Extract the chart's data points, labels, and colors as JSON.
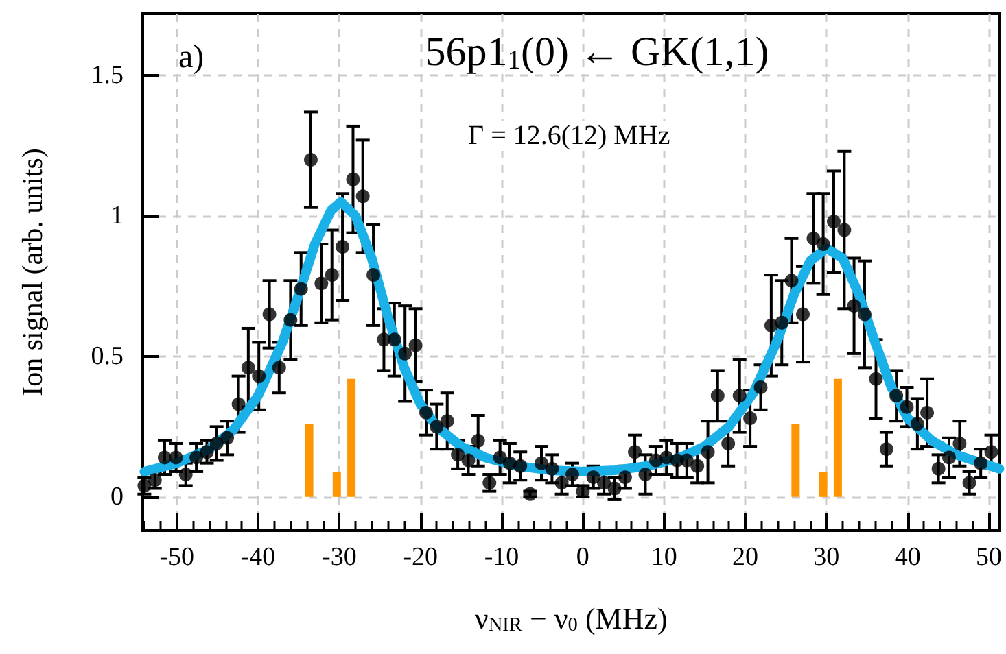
{
  "chart_data": {
    "type": "scatter",
    "title": "56p1$_{1}$(0) ← GK(1,1)",
    "xlabel": "ν$_{NIR}$ − ν$_{0}$ (MHz)",
    "ylabel": "Ion signal (arb. units)",
    "annotations": [
      "a)",
      "Γ = 12.6(12) MHz"
    ],
    "xlim": [
      -54.2,
      51.3
    ],
    "ylim": [
      -0.12,
      1.72
    ],
    "xticks": [
      -50,
      -40,
      -30,
      -20,
      -10,
      0,
      10,
      20,
      30,
      40,
      50
    ],
    "yticks": [
      0,
      0.5,
      1,
      1.5
    ],
    "grid": true,
    "series": [
      {
        "marker": "circle",
        "color": "#000000",
        "x": [
          -54.0,
          -52.7,
          -51.5,
          -50.1,
          -48.9,
          -47.6,
          -46.3,
          -45.1,
          -43.8,
          -42.4,
          -41.2,
          -39.9,
          -38.6,
          -37.4,
          -36.0,
          -34.7,
          -33.5,
          -32.2,
          -30.9,
          -29.6,
          -28.3,
          -27.1,
          -25.8,
          -24.5,
          -23.2,
          -21.9,
          -20.6,
          -19.3,
          -18.0,
          -16.7,
          -15.4,
          -14.1,
          -12.9,
          -11.5,
          -10.2,
          -9.0,
          -7.7,
          -6.5,
          -5.1,
          -3.8,
          -2.6,
          -1.3,
          0.0,
          1.3,
          2.6,
          3.9,
          5.2,
          6.4,
          7.7,
          9.0,
          10.3,
          11.6,
          12.8,
          14.1,
          15.4,
          16.6,
          17.9,
          19.3,
          20.6,
          21.9,
          23.2,
          24.5,
          25.7,
          27.1,
          28.4,
          29.6,
          30.9,
          32.2,
          33.4,
          34.7,
          36.1,
          37.4,
          38.6,
          39.9,
          41.2,
          42.4,
          43.8,
          45.1,
          46.4,
          47.6,
          49.0,
          50.3
        ],
        "values": [
          0.04,
          0.06,
          0.14,
          0.14,
          0.08,
          0.14,
          0.16,
          0.19,
          0.21,
          0.33,
          0.46,
          0.43,
          0.65,
          0.46,
          0.63,
          0.74,
          1.2,
          0.76,
          0.79,
          0.89,
          1.13,
          1.07,
          0.79,
          0.56,
          0.56,
          0.51,
          0.54,
          0.3,
          0.25,
          0.27,
          0.15,
          0.13,
          0.2,
          0.05,
          0.14,
          0.12,
          0.11,
          0.01,
          0.12,
          0.1,
          0.05,
          0.08,
          0.02,
          0.07,
          0.05,
          0.03,
          0.07,
          0.16,
          0.08,
          0.13,
          0.14,
          0.13,
          0.13,
          0.11,
          0.16,
          0.36,
          0.19,
          0.36,
          0.28,
          0.39,
          0.61,
          0.62,
          0.77,
          0.65,
          0.92,
          0.9,
          0.98,
          0.95,
          0.68,
          0.65,
          0.42,
          0.17,
          0.36,
          0.32,
          0.26,
          0.3,
          0.1,
          0.14,
          0.19,
          0.05,
          0.12,
          0.16
        ],
        "errors": [
          0.03,
          0.03,
          0.06,
          0.05,
          0.04,
          0.05,
          0.04,
          0.06,
          0.06,
          0.1,
          0.14,
          0.12,
          0.12,
          0.09,
          0.14,
          0.13,
          0.17,
          0.14,
          0.16,
          0.19,
          0.19,
          0.2,
          0.18,
          0.11,
          0.13,
          0.17,
          0.13,
          0.08,
          0.08,
          0.1,
          0.05,
          0.05,
          0.09,
          0.03,
          0.06,
          0.07,
          0.05,
          0.01,
          0.06,
          0.05,
          0.04,
          0.04,
          0.02,
          0.04,
          0.04,
          0.04,
          0.04,
          0.06,
          0.07,
          0.05,
          0.06,
          0.06,
          0.06,
          0.06,
          0.11,
          0.09,
          0.08,
          0.13,
          0.1,
          0.08,
          0.18,
          0.15,
          0.15,
          0.17,
          0.16,
          0.18,
          0.18,
          0.28,
          0.17,
          0.19,
          0.14,
          0.06,
          0.09,
          0.07,
          0.09,
          0.12,
          0.05,
          0.07,
          0.08,
          0.04,
          0.05,
          0.06
        ]
      },
      {
        "type": "line",
        "color": "#1ab0e8",
        "x": [
          -54,
          -50,
          -46,
          -43,
          -40,
          -37,
          -35,
          -33,
          -31,
          -29.8,
          -28,
          -26,
          -24,
          -22,
          -20,
          -18,
          -15,
          -12,
          -8,
          -4,
          0,
          4,
          8,
          12,
          15,
          18,
          21,
          24,
          26,
          28,
          30,
          32,
          34,
          36,
          38,
          40,
          43,
          46,
          51.3
        ],
        "values": [
          0.09,
          0.12,
          0.17,
          0.24,
          0.36,
          0.55,
          0.72,
          0.9,
          1.02,
          1.05,
          1.0,
          0.85,
          0.64,
          0.46,
          0.33,
          0.25,
          0.18,
          0.14,
          0.11,
          0.095,
          0.09,
          0.095,
          0.11,
          0.14,
          0.18,
          0.25,
          0.37,
          0.56,
          0.72,
          0.84,
          0.885,
          0.85,
          0.72,
          0.55,
          0.39,
          0.28,
          0.2,
          0.15,
          0.1
        ]
      },
      {
        "type": "bar",
        "color": "#ff9500",
        "x": [
          -33.7,
          -30.3,
          -28.5,
          26.2,
          29.6,
          31.4
        ],
        "values": [
          0.26,
          0.09,
          0.42,
          0.26,
          0.09,
          0.42
        ]
      }
    ]
  }
}
